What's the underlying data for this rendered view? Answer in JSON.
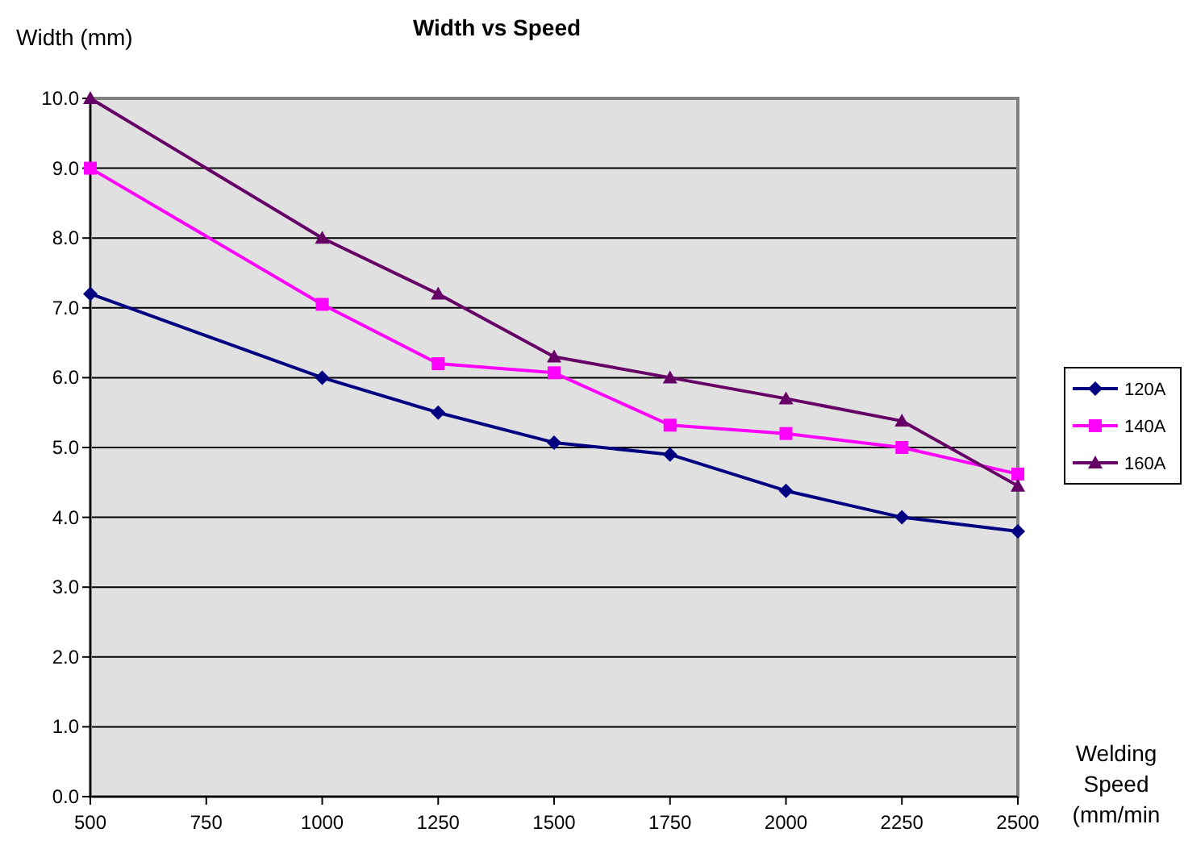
{
  "chart_data": {
    "type": "line",
    "title": "Width vs Speed",
    "xlabel": "Welding Speed (mm/min",
    "ylabel": "Width (mm)",
    "x": [
      500,
      1000,
      1250,
      1500,
      1750,
      2000,
      2250,
      2500
    ],
    "xlim": [
      500,
      2500
    ],
    "xticks": [
      500,
      750,
      1000,
      1250,
      1500,
      1750,
      2000,
      2250,
      2500
    ],
    "ylim": [
      0,
      10
    ],
    "yticks": [
      {
        "value": 0,
        "label": "0.0"
      },
      {
        "value": 1,
        "label": "1.0"
      },
      {
        "value": 2,
        "label": "2.0"
      },
      {
        "value": 3,
        "label": "3.0"
      },
      {
        "value": 4,
        "label": "4.0"
      },
      {
        "value": 5,
        "label": "5.0"
      },
      {
        "value": 6,
        "label": "6.0"
      },
      {
        "value": 7,
        "label": "7.0"
      },
      {
        "value": 8,
        "label": "8.0"
      },
      {
        "value": 9,
        "label": "9.0"
      },
      {
        "value": 10,
        "label": "10.0"
      }
    ],
    "grid": "y",
    "legend": "right",
    "series": [
      {
        "name": "120A",
        "color": "#000080",
        "marker": "diamond",
        "values": [
          7.2,
          6.0,
          5.5,
          5.07,
          4.9,
          4.38,
          4.0,
          3.8
        ]
      },
      {
        "name": "140A",
        "color": "#ff00ff",
        "marker": "square",
        "values": [
          9.0,
          7.05,
          6.2,
          6.07,
          5.32,
          5.2,
          5.0,
          4.62
        ]
      },
      {
        "name": "160A",
        "color": "#660066",
        "marker": "triangle",
        "values": [
          10.0,
          8.0,
          7.2,
          6.3,
          6.0,
          5.7,
          5.38,
          4.45
        ]
      }
    ]
  }
}
